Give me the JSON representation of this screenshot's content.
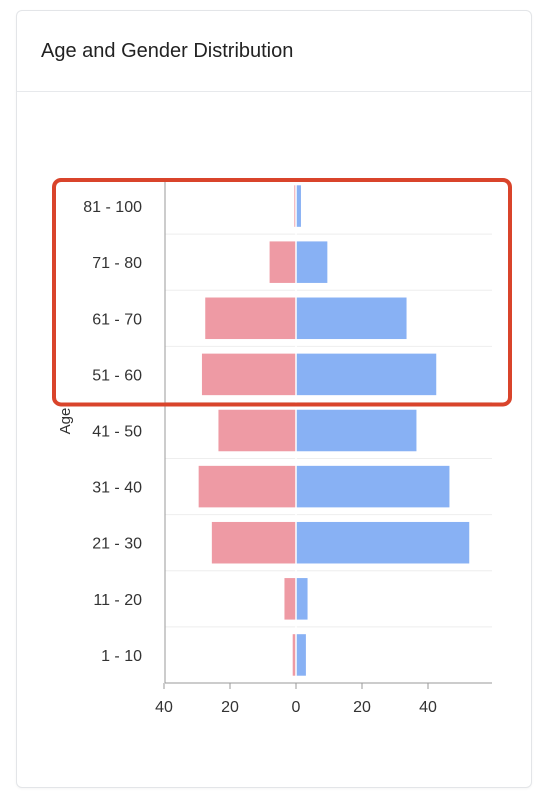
{
  "card": {
    "title": "Age and Gender Distribution"
  },
  "colors": {
    "female": "#ee9aa4",
    "male": "#88b1f4",
    "highlight": "#d9442b",
    "grid": "#eeeeee",
    "axis": "#999999"
  },
  "chart_data": {
    "type": "bar",
    "orientation": "horizontal",
    "title": "Age and Gender Distribution",
    "ylabel": "Age",
    "xlabel": "",
    "categories": [
      "81 - 100",
      "71 - 80",
      "61 - 70",
      "51 - 60",
      "41 - 50",
      "31 - 40",
      "21 - 30",
      "11 - 20",
      "1 - 10"
    ],
    "series": [
      {
        "color": "#ee9aa4",
        "values": [
          -0.5,
          -8,
          -27.5,
          -28.5,
          -23.5,
          -29.5,
          -25.5,
          -3.5,
          -1
        ]
      },
      {
        "color": "#88b1f4",
        "values": [
          1.5,
          9.5,
          33.5,
          42.5,
          36.5,
          46.5,
          52.5,
          3.5,
          3
        ]
      }
    ],
    "xlim": [
      -40,
      60
    ],
    "xticks": [
      {
        "value": -40,
        "label": "40"
      },
      {
        "value": -20,
        "label": "20"
      },
      {
        "value": 0,
        "label": "0"
      },
      {
        "value": 20,
        "label": "20"
      },
      {
        "value": 40,
        "label": "40"
      }
    ],
    "grid": true,
    "highlighted_categories": [
      "81 - 100",
      "71 - 80",
      "61 - 70",
      "51 - 60"
    ]
  }
}
